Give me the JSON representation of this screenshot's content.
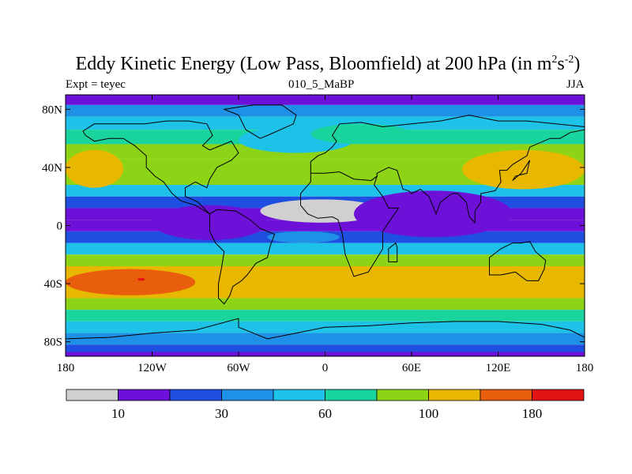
{
  "chart_data": {
    "type": "heatmap",
    "title_main": "Eddy Kinetic Energy (Low Pass, Bloomfield) at 200 hPa (in m",
    "title_units_exp1": "2",
    "title_units_mid": "s",
    "title_units_exp2": "-2",
    "title_close": ")",
    "subtitle_left": "Expt = teyec",
    "subtitle_center": "010_5_MaBP",
    "subtitle_right": "JJA",
    "x_axis": {
      "range": [
        -180,
        180
      ],
      "ticks": [
        {
          "value": -180,
          "label": "180"
        },
        {
          "value": -120,
          "label": "120W"
        },
        {
          "value": -60,
          "label": "60W"
        },
        {
          "value": 0,
          "label": "0"
        },
        {
          "value": 60,
          "label": "60E"
        },
        {
          "value": 120,
          "label": "120E"
        },
        {
          "value": 180,
          "label": "180"
        }
      ]
    },
    "y_axis": {
      "range": [
        -90,
        90
      ],
      "ticks": [
        {
          "value": 80,
          "label": "80N"
        },
        {
          "value": 40,
          "label": "40N"
        },
        {
          "value": 0,
          "label": "0"
        },
        {
          "value": -40,
          "label": "40S"
        },
        {
          "value": -80,
          "label": "80S"
        }
      ]
    },
    "colorbar": {
      "colors": [
        "#d0d0d0",
        "#6e11d8",
        "#1f4fe0",
        "#1e90e6",
        "#1ec2e8",
        "#19d49c",
        "#8ed416",
        "#e8b800",
        "#e85e0c",
        "#e01414"
      ],
      "labels": [
        {
          "boundary": 1,
          "label": "10"
        },
        {
          "boundary": 3,
          "label": "30"
        },
        {
          "boundary": 5,
          "label": "60"
        },
        {
          "boundary": 7,
          "label": "100"
        },
        {
          "boundary": 9,
          "label": "180"
        }
      ]
    },
    "zonal_bands": [
      {
        "lat": [
          83,
          90
        ],
        "level": 1
      },
      {
        "lat": [
          75,
          83
        ],
        "level": 3
      },
      {
        "lat": [
          66,
          75
        ],
        "level": 4
      },
      {
        "lat": [
          56,
          66
        ],
        "level": 5
      },
      {
        "lat": [
          46,
          56
        ],
        "level": 6
      },
      {
        "lat": [
          28,
          46
        ],
        "level": 6
      },
      {
        "lat": [
          20,
          28
        ],
        "level": 4
      },
      {
        "lat": [
          12,
          20
        ],
        "level": 2
      },
      {
        "lat": [
          4,
          12
        ],
        "level": 1
      },
      {
        "lat": [
          -4,
          4
        ],
        "level": 1
      },
      {
        "lat": [
          -12,
          -4
        ],
        "level": 2
      },
      {
        "lat": [
          -20,
          -12
        ],
        "level": 4
      },
      {
        "lat": [
          -28,
          -20
        ],
        "level": 6
      },
      {
        "lat": [
          -50,
          -28
        ],
        "level": 7
      },
      {
        "lat": [
          -58,
          -50
        ],
        "level": 6
      },
      {
        "lat": [
          -66,
          -58
        ],
        "level": 5
      },
      {
        "lat": [
          -74,
          -66
        ],
        "level": 4
      },
      {
        "lat": [
          -82,
          -74
        ],
        "level": 3
      },
      {
        "lat": [
          -87,
          -82
        ],
        "level": 2
      },
      {
        "lat": [
          -90,
          -87
        ],
        "level": 1
      }
    ],
    "anomalies": [
      {
        "lon": [
          -180,
          -150
        ],
        "lat": [
          28,
          50
        ],
        "level": 8
      },
      {
        "lon": [
          -180,
          -140
        ],
        "lat": [
          26,
          52
        ],
        "level": 7
      },
      {
        "lon": [
          130,
          180
        ],
        "lat": [
          30,
          48
        ],
        "level": 8
      },
      {
        "lon": [
          95,
          180
        ],
        "lat": [
          25,
          52
        ],
        "level": 7
      },
      {
        "lon": [
          -180,
          -90
        ],
        "lat": [
          -48,
          -30
        ],
        "level": 8
      },
      {
        "lon": [
          -165,
          -95
        ],
        "lat": [
          -44,
          -34
        ],
        "level": 8
      },
      {
        "lon": [
          -130,
          -125
        ],
        "lat": [
          -38,
          -36
        ],
        "level": 9
      },
      {
        "lon": [
          110,
          160
        ],
        "lat": [
          -45,
          -30
        ],
        "level": 7
      },
      {
        "lon": [
          -45,
          40
        ],
        "lat": [
          2,
          18
        ],
        "level": 0
      },
      {
        "lon": [
          -85,
          -75
        ],
        "lat": [
          4,
          8
        ],
        "level": 0
      },
      {
        "lon": [
          85,
          95
        ],
        "lat": [
          16,
          20
        ],
        "level": 0
      },
      {
        "lon": [
          -120,
          -40
        ],
        "lat": [
          -10,
          14
        ],
        "level": 1
      },
      {
        "lon": [
          20,
          130
        ],
        "lat": [
          -8,
          24
        ],
        "level": 1
      },
      {
        "lon": [
          -60,
          20
        ],
        "lat": [
          50,
          68
        ],
        "level": 4
      },
      {
        "lon": [
          -10,
          60
        ],
        "lat": [
          56,
          70
        ],
        "level": 5
      },
      {
        "lon": [
          -40,
          10
        ],
        "lat": [
          -12,
          -4
        ],
        "level": 3
      }
    ],
    "coastlines": [
      [
        [
          -168,
          65
        ],
        [
          -160,
          70
        ],
        [
          -140,
          70
        ],
        [
          -125,
          70
        ],
        [
          -110,
          72
        ],
        [
          -95,
          72
        ],
        [
          -82,
          70
        ],
        [
          -78,
          62
        ],
        [
          -85,
          55
        ],
        [
          -80,
          52
        ],
        [
          -65,
          58
        ],
        [
          -60,
          50
        ],
        [
          -65,
          45
        ],
        [
          -75,
          40
        ],
        [
          -80,
          32
        ],
        [
          -82,
          26
        ],
        [
          -90,
          30
        ],
        [
          -97,
          26
        ],
        [
          -97,
          20
        ],
        [
          -92,
          18
        ],
        [
          -88,
          16
        ],
        [
          -84,
          12
        ],
        [
          -80,
          8
        ],
        [
          -90,
          14
        ],
        [
          -100,
          17
        ],
        [
          -106,
          22
        ],
        [
          -112,
          30
        ],
        [
          -118,
          34
        ],
        [
          -124,
          40
        ],
        [
          -124,
          48
        ],
        [
          -132,
          55
        ],
        [
          -140,
          60
        ],
        [
          -150,
          60
        ],
        [
          -160,
          58
        ],
        [
          -166,
          62
        ],
        [
          -168,
          65
        ]
      ],
      [
        [
          -80,
          8
        ],
        [
          -75,
          11
        ],
        [
          -62,
          10
        ],
        [
          -52,
          4
        ],
        [
          -45,
          -2
        ],
        [
          -35,
          -6
        ],
        [
          -38,
          -14
        ],
        [
          -40,
          -22
        ],
        [
          -48,
          -26
        ],
        [
          -54,
          -34
        ],
        [
          -58,
          -38
        ],
        [
          -64,
          -42
        ],
        [
          -66,
          -48
        ],
        [
          -70,
          -54
        ],
        [
          -74,
          -50
        ],
        [
          -74,
          -40
        ],
        [
          -72,
          -30
        ],
        [
          -70,
          -18
        ],
        [
          -76,
          -12
        ],
        [
          -80,
          -4
        ],
        [
          -80,
          8
        ]
      ],
      [
        [
          -45,
          60
        ],
        [
          -55,
          66
        ],
        [
          -60,
          76
        ],
        [
          -70,
          80
        ],
        [
          -50,
          83
        ],
        [
          -30,
          83
        ],
        [
          -20,
          76
        ],
        [
          -22,
          70
        ],
        [
          -40,
          62
        ],
        [
          -45,
          60
        ]
      ],
      [
        [
          -10,
          36
        ],
        [
          -10,
          44
        ],
        [
          -5,
          48
        ],
        [
          0,
          50
        ],
        [
          5,
          54
        ],
        [
          8,
          58
        ],
        [
          5,
          62
        ],
        [
          10,
          70
        ],
        [
          25,
          71
        ],
        [
          40,
          68
        ],
        [
          60,
          70
        ],
        [
          80,
          72
        ],
        [
          100,
          76
        ],
        [
          120,
          72
        ],
        [
          140,
          72
        ],
        [
          160,
          70
        ],
        [
          180,
          68
        ]
      ],
      [
        [
          -10,
          36
        ],
        [
          0,
          36
        ],
        [
          10,
          37
        ],
        [
          20,
          32
        ],
        [
          32,
          31
        ],
        [
          36,
          34
        ],
        [
          34,
          28
        ],
        [
          40,
          20
        ],
        [
          44,
          12
        ],
        [
          51,
          12
        ],
        [
          44,
          2
        ],
        [
          40,
          -4
        ],
        [
          40,
          -16
        ],
        [
          35,
          -24
        ],
        [
          30,
          -32
        ],
        [
          20,
          -35
        ],
        [
          18,
          -30
        ],
        [
          14,
          -20
        ],
        [
          12,
          -6
        ],
        [
          9,
          4
        ],
        [
          5,
          6
        ],
        [
          -5,
          5
        ],
        [
          -12,
          8
        ],
        [
          -17,
          14
        ],
        [
          -17,
          22
        ],
        [
          -10,
          30
        ],
        [
          -10,
          36
        ]
      ],
      [
        [
          32,
          31
        ],
        [
          36,
          34
        ],
        [
          36,
          36
        ],
        [
          44,
          40
        ],
        [
          50,
          38
        ],
        [
          54,
          25
        ],
        [
          58,
          24
        ],
        [
          60,
          22
        ],
        [
          66,
          25
        ],
        [
          72,
          20
        ],
        [
          77,
          8
        ],
        [
          80,
          16
        ],
        [
          88,
          22
        ],
        [
          92,
          22
        ],
        [
          98,
          16
        ],
        [
          100,
          6
        ],
        [
          104,
          2
        ],
        [
          104,
          10
        ],
        [
          108,
          16
        ],
        [
          108,
          22
        ],
        [
          118,
          24
        ],
        [
          122,
          30
        ],
        [
          121,
          38
        ],
        [
          126,
          38
        ],
        [
          130,
          42
        ],
        [
          140,
          48
        ],
        [
          142,
          54
        ],
        [
          156,
          60
        ],
        [
          163,
          60
        ],
        [
          170,
          64
        ],
        [
          180,
          66
        ]
      ],
      [
        [
          114,
          -22
        ],
        [
          114,
          -34
        ],
        [
          122,
          -34
        ],
        [
          132,
          -32
        ],
        [
          140,
          -38
        ],
        [
          148,
          -38
        ],
        [
          152,
          -30
        ],
        [
          153,
          -24
        ],
        [
          146,
          -18
        ],
        [
          142,
          -11
        ],
        [
          136,
          -12
        ],
        [
          130,
          -12
        ],
        [
          122,
          -16
        ],
        [
          114,
          -22
        ]
      ],
      [
        [
          -180,
          -78
        ],
        [
          -150,
          -77
        ],
        [
          -120,
          -74
        ],
        [
          -90,
          -72
        ],
        [
          -60,
          -64
        ],
        [
          -60,
          -70
        ],
        [
          -40,
          -78
        ],
        [
          -20,
          -74
        ],
        [
          0,
          -70
        ],
        [
          30,
          -69
        ],
        [
          60,
          -67
        ],
        [
          90,
          -66
        ],
        [
          120,
          -66
        ],
        [
          150,
          -68
        ],
        [
          170,
          -72
        ],
        [
          180,
          -77
        ]
      ],
      [
        [
          44,
          -25
        ],
        [
          50,
          -25
        ],
        [
          50,
          -15
        ],
        [
          49,
          -12
        ],
        [
          44,
          -16
        ],
        [
          44,
          -25
        ]
      ],
      [
        [
          130,
          31
        ],
        [
          132,
          34
        ],
        [
          136,
          35
        ],
        [
          140,
          36
        ],
        [
          141,
          41
        ],
        [
          142,
          45
        ],
        [
          140,
          42
        ],
        [
          136,
          36
        ],
        [
          130,
          31
        ]
      ]
    ]
  }
}
